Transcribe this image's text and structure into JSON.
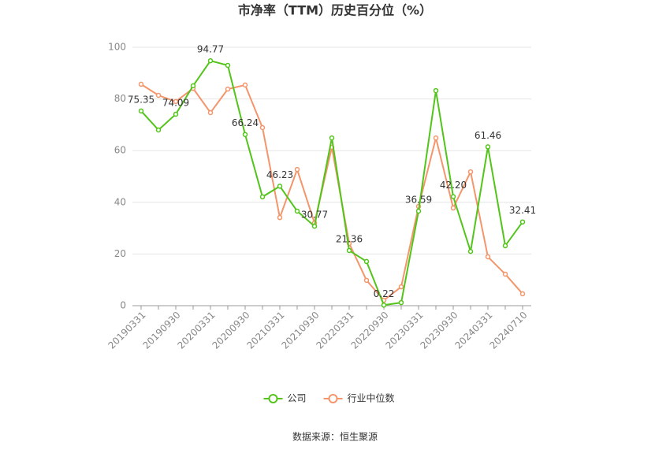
{
  "chart_data": {
    "type": "line",
    "title": "市净率（TTM）历史百分位（%）",
    "source": "数据来源：恒生聚源",
    "categories": [
      "20190331",
      null,
      "20190930",
      null,
      "20200331",
      null,
      "20200930",
      null,
      "20210331",
      null,
      "20210930",
      null,
      "20220331",
      null,
      "20220930",
      null,
      "20230331",
      null,
      "20230930",
      null,
      "20240331",
      null,
      "20240710"
    ],
    "series": [
      {
        "name": "公司",
        "color": "#52c41a",
        "values": [
          75.35,
          68.0,
          74.09,
          85.1,
          94.77,
          93.0,
          66.24,
          42.1,
          46.23,
          36.6,
          30.77,
          64.9,
          21.36,
          17.1,
          0.22,
          1.2,
          36.59,
          83.2,
          42.2,
          21.0,
          61.46,
          23.2,
          32.41
        ],
        "value_labels": [
          "75.35",
          null,
          "74.09",
          null,
          "94.77",
          null,
          "66.24",
          null,
          "46.23",
          null,
          "30.77",
          null,
          "21.36",
          null,
          "0.22",
          null,
          "36.59",
          null,
          "42.20",
          null,
          "61.46",
          null,
          "32.41"
        ]
      },
      {
        "name": "行业中位数",
        "color": "#f4956b",
        "values": [
          85.7,
          81.4,
          79.0,
          84.1,
          74.7,
          83.8,
          85.4,
          68.9,
          34.1,
          52.7,
          32.0,
          61.3,
          24.1,
          9.8,
          2.1,
          7.3,
          38.4,
          64.9,
          37.8,
          51.8,
          18.9,
          12.2,
          4.6
        ]
      }
    ],
    "ylim": [
      0,
      100
    ],
    "yticks": [
      0,
      20,
      40,
      60,
      80,
      100
    ],
    "grid": true,
    "legend": "bottom"
  }
}
